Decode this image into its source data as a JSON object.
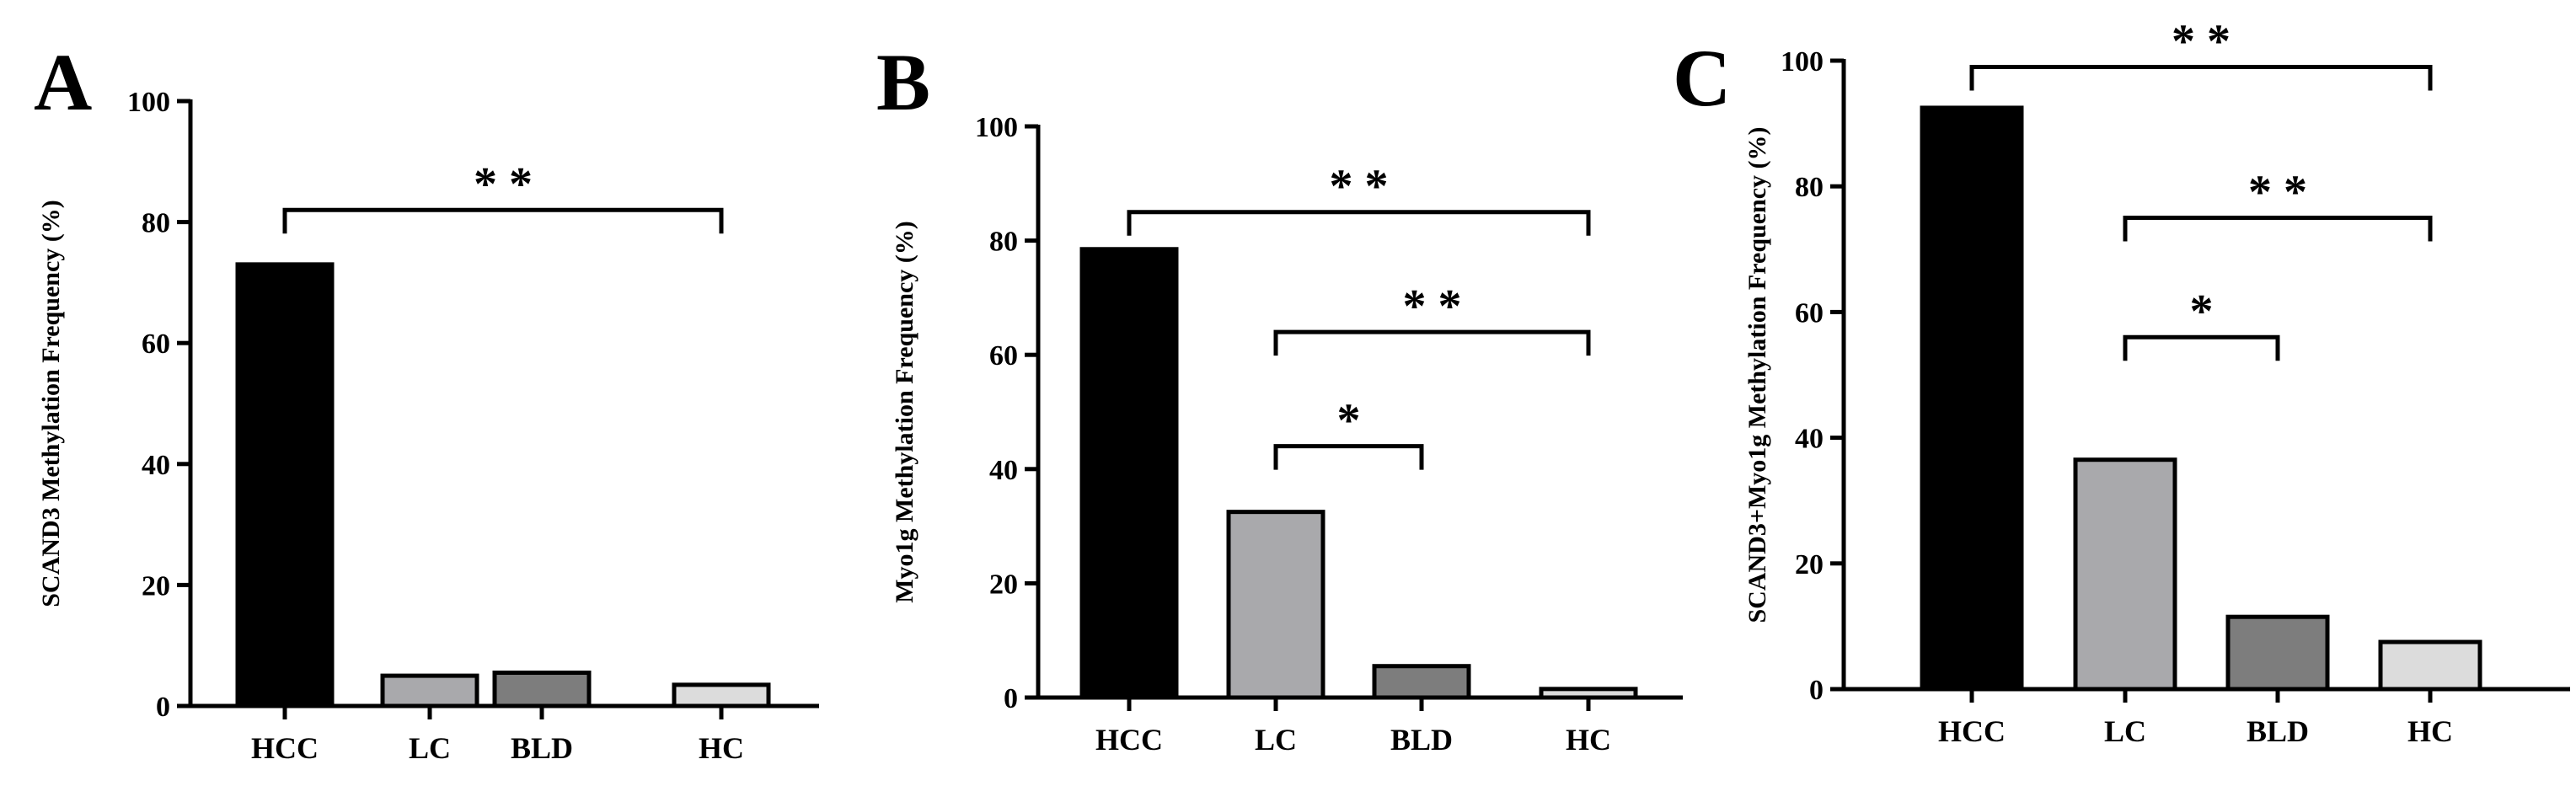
{
  "chart_data": [
    {
      "type": "bar",
      "panel": "A",
      "ylabel": "SCAND3 Methylation Frequency (%)",
      "ylim": [
        0,
        100
      ],
      "yticks": [
        0,
        20,
        40,
        60,
        80,
        100
      ],
      "categories": [
        "HCC",
        "LC",
        "BLD",
        "HC"
      ],
      "values": [
        73,
        5,
        5.5,
        3.5
      ],
      "colors": [
        "#000000",
        "#a9a9ac",
        "#7d7d7d",
        "#dcdcdc"
      ],
      "significance": [
        {
          "from": "HCC",
          "to": "HC",
          "label": "* *",
          "level": 82
        }
      ]
    },
    {
      "type": "bar",
      "panel": "B",
      "ylabel": "Myo1g Methylation Frequency (%)",
      "ylim": [
        0,
        100
      ],
      "yticks": [
        0,
        20,
        40,
        60,
        80,
        100
      ],
      "categories": [
        "HCC",
        "LC",
        "BLD",
        "HC"
      ],
      "values": [
        78.5,
        32.5,
        5.5,
        1.5
      ],
      "colors": [
        "#000000",
        "#a9a9ac",
        "#7d7d7d",
        "#dcdcdc"
      ],
      "significance": [
        {
          "from": "HCC",
          "to": "HC",
          "label": "* *",
          "level": 85
        },
        {
          "from": "LC",
          "to": "HC",
          "label": "* *",
          "level": 64
        },
        {
          "from": "LC",
          "to": "BLD",
          "label": "*",
          "level": 44
        }
      ]
    },
    {
      "type": "bar",
      "panel": "C",
      "ylabel": "SCAND3+Myo1g Methylation Frequency (%)",
      "ylim": [
        0,
        100
      ],
      "yticks": [
        0,
        20,
        40,
        60,
        80,
        100
      ],
      "categories": [
        "HCC",
        "LC",
        "BLD",
        "HC"
      ],
      "values": [
        92.5,
        36.5,
        11.5,
        7.5
      ],
      "colors": [
        "#000000",
        "#a9a9ac",
        "#7d7d7d",
        "#dcdcdc"
      ],
      "significance": [
        {
          "from": "HCC",
          "to": "HC",
          "label": "* *",
          "level": 99
        },
        {
          "from": "LC",
          "to": "HC",
          "label": "* *",
          "level": 75
        },
        {
          "from": "LC",
          "to": "BLD",
          "label": "*",
          "level": 56
        }
      ]
    }
  ]
}
